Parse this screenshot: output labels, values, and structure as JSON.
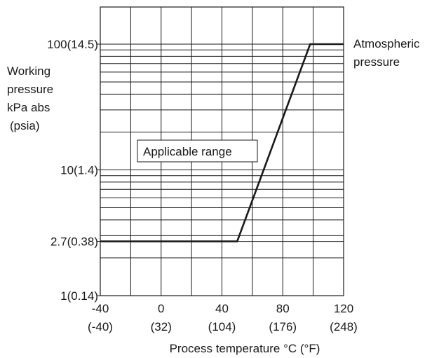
{
  "chart_data": {
    "type": "line",
    "title": "",
    "xlabel": "Process temperature °C (°F)",
    "ylabel_lines": [
      "Working",
      "pressure",
      "kPa abs",
      "(psia)"
    ],
    "x_ticks": [
      {
        "value": -40,
        "celsius": "-40",
        "fahrenheit": "(-40)"
      },
      {
        "value": 0,
        "celsius": "0",
        "fahrenheit": "(32)"
      },
      {
        "value": 40,
        "celsius": "40",
        "fahrenheit": "(104)"
      },
      {
        "value": 80,
        "celsius": "80",
        "fahrenheit": "(176)"
      },
      {
        "value": 120,
        "celsius": "120",
        "fahrenheit": "(248)"
      }
    ],
    "y_ticks": [
      {
        "value": 1,
        "label": "1(0.14)"
      },
      {
        "value": 2.7,
        "label": "2.7(0.38)"
      },
      {
        "value": 10,
        "label": "10(1.4)"
      },
      {
        "value": 100,
        "label": "100(14.5)"
      }
    ],
    "xlim": [
      -40,
      120
    ],
    "ylim": [
      1,
      100
    ],
    "y_scale": "log",
    "x_grid_step": 20,
    "y_grid_decades": [
      1,
      10
    ],
    "grid": true,
    "series": [
      {
        "x": [
          -40,
          50,
          98,
          120
        ],
        "y": [
          2.7,
          2.7,
          100,
          100
        ]
      }
    ],
    "annotations": {
      "range_label": "Applicable range",
      "atmospheric_lines": [
        "Atmospheric",
        "pressure"
      ]
    }
  }
}
